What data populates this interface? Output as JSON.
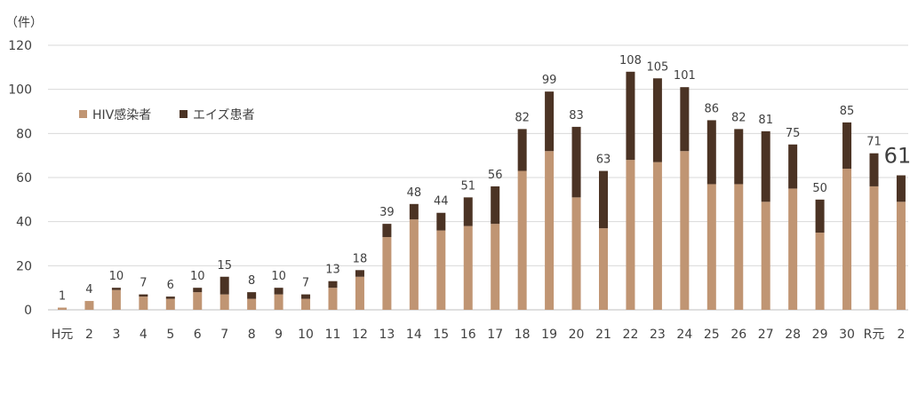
{
  "chart_data": {
    "type": "bar",
    "stacked": true,
    "unit_label": "（件）",
    "categories": [
      "H元",
      "2",
      "3",
      "4",
      "5",
      "6",
      "7",
      "8",
      "9",
      "10",
      "11",
      "12",
      "13",
      "14",
      "15",
      "16",
      "17",
      "18",
      "19",
      "20",
      "21",
      "22",
      "23",
      "24",
      "25",
      "26",
      "27",
      "28",
      "29",
      "30",
      "R元",
      "2"
    ],
    "series": [
      {
        "name": "HIV感染者",
        "color": "#c09573",
        "values": [
          1,
          4,
          9,
          6,
          5,
          8,
          7,
          5,
          7,
          5,
          10,
          15,
          33,
          41,
          36,
          38,
          39,
          63,
          72,
          51,
          37,
          68,
          67,
          72,
          57,
          57,
          49,
          55,
          35,
          64,
          56,
          49
        ]
      },
      {
        "name": "エイズ患者",
        "color": "#4b3324",
        "values": [
          0,
          0,
          1,
          1,
          1,
          2,
          8,
          3,
          3,
          2,
          3,
          3,
          6,
          7,
          8,
          13,
          17,
          19,
          27,
          32,
          26,
          40,
          38,
          29,
          29,
          25,
          32,
          20,
          15,
          21,
          15,
          12
        ]
      }
    ],
    "totals": [
      1,
      4,
      10,
      7,
      6,
      10,
      15,
      8,
      10,
      7,
      13,
      18,
      39,
      48,
      44,
      51,
      56,
      82,
      99,
      83,
      63,
      108,
      105,
      101,
      86,
      82,
      81,
      75,
      50,
      85,
      71,
      61
    ],
    "ylim": [
      0,
      120
    ],
    "yticks": [
      "0",
      "20",
      "40",
      "60",
      "80",
      "100",
      "120"
    ],
    "grid": true,
    "legend_position": "top-left"
  }
}
